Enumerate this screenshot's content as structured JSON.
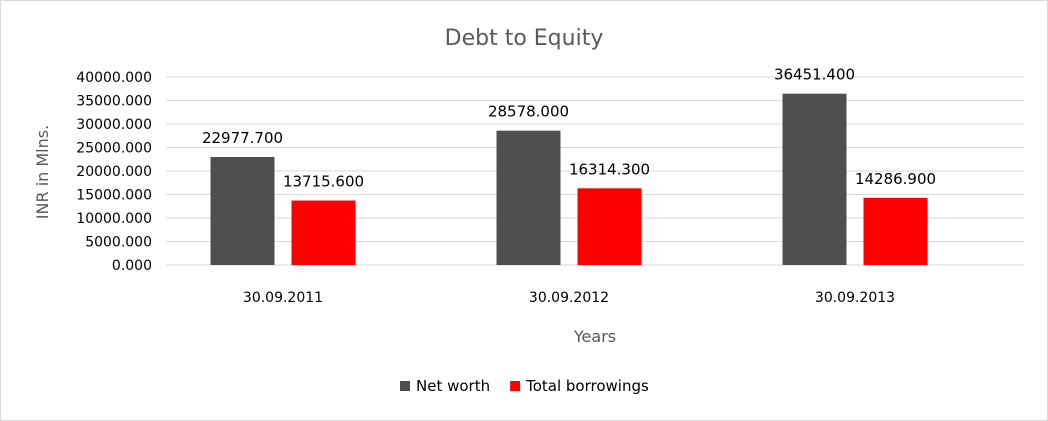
{
  "chart_data": {
    "type": "bar",
    "title": "Debt to Equity",
    "xlabel": "Years",
    "ylabel": "INR in Mlns.",
    "categories": [
      "30.09.2011",
      "30.09.2012",
      "30.09.2013"
    ],
    "series": [
      {
        "name": "Net worth",
        "color": "#4f4f4f",
        "values": [
          22977.7,
          28578.0,
          36451.4
        ],
        "labels": [
          "22977.700",
          "28578.000",
          "36451.400"
        ]
      },
      {
        "name": "Total borrowings",
        "color": "#ff0000",
        "values": [
          13715.6,
          16314.3,
          14286.9
        ],
        "labels": [
          "13715.600",
          "16314.300",
          "14286.900"
        ]
      }
    ],
    "ylim": [
      0,
      40000
    ],
    "yticks": [
      0,
      5000,
      10000,
      15000,
      20000,
      25000,
      30000,
      35000,
      40000
    ],
    "ytick_labels": [
      "0.000",
      "5000.000",
      "10000.000",
      "15000.000",
      "20000.000",
      "25000.000",
      "30000.000",
      "35000.000",
      "40000.000"
    ],
    "grid": true,
    "legend_position": "bottom"
  }
}
